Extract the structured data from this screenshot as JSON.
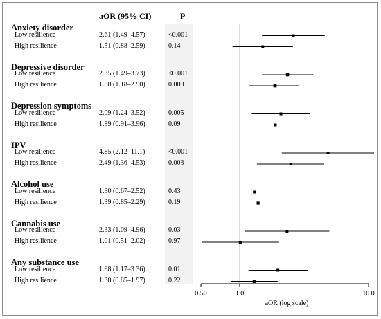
{
  "header": {
    "or_col": "aOR (95% CI)",
    "p_col": "P"
  },
  "chart_data": {
    "type": "forest",
    "xlabel": "aOR (log scale)",
    "xscale": "log",
    "xlim": [
      0.5,
      10.0
    ],
    "xticks": [
      0.5,
      1.0,
      10.0
    ],
    "xtick_labels": [
      "0.50",
      "1.0",
      "10.0"
    ],
    "reference_line": 1.0,
    "groups": [
      {
        "name": "Anxiety disorder",
        "rows": [
          {
            "label": "Low resilience",
            "or_text": "2.61 (1.49–4.57)",
            "p": "<0.001",
            "or": 2.61,
            "lo": 1.49,
            "hi": 4.57
          },
          {
            "label": "High resilience",
            "or_text": "1.51 (0.88–2.59)",
            "p": "0.14",
            "or": 1.51,
            "lo": 0.88,
            "hi": 2.59
          }
        ]
      },
      {
        "name": "Depressive disorder",
        "rows": [
          {
            "label": "Low resilience",
            "or_text": "2.35 (1.49–3.73)",
            "p": "<0.001",
            "or": 2.35,
            "lo": 1.49,
            "hi": 3.73
          },
          {
            "label": "High resilience",
            "or_text": "1.88 (1.18–2.90)",
            "p": "0.008",
            "or": 1.88,
            "lo": 1.18,
            "hi": 2.9
          }
        ]
      },
      {
        "name": "Depression symptoms",
        "rows": [
          {
            "label": "Low resilience",
            "or_text": "2.09 (1.24–3.52)",
            "p": "0.005",
            "or": 2.09,
            "lo": 1.24,
            "hi": 3.52
          },
          {
            "label": "High resilience",
            "or_text": "1.89 (0.91–3.96)",
            "p": "0.09",
            "or": 1.89,
            "lo": 0.91,
            "hi": 3.96
          }
        ]
      },
      {
        "name": "IPV",
        "rows": [
          {
            "label": "Low resilience",
            "or_text": "4.85 (2.12–11.1)",
            "p": "<0.001",
            "or": 4.85,
            "lo": 2.12,
            "hi": 11.1
          },
          {
            "label": "High resilience",
            "or_text": "2.49 (1.36–4.53)",
            "p": "0.003",
            "or": 2.49,
            "lo": 1.36,
            "hi": 4.53
          }
        ]
      },
      {
        "name": "Alcohol use",
        "rows": [
          {
            "label": "Low resilience",
            "or_text": "1.30 (0.67–2.52)",
            "p": "0.43",
            "or": 1.3,
            "lo": 0.67,
            "hi": 2.52
          },
          {
            "label": "High resilience",
            "or_text": "1.39 (0.85–2.29)",
            "p": "0.19",
            "or": 1.39,
            "lo": 0.85,
            "hi": 2.29
          }
        ]
      },
      {
        "name": "Cannabis use",
        "rows": [
          {
            "label": "Low resilience",
            "or_text": "2.33 (1.09–4.96)",
            "p": "0.03",
            "or": 2.33,
            "lo": 1.09,
            "hi": 4.96
          },
          {
            "label": "High resilience",
            "or_text": "1.01 (0.51–2.02)",
            "p": "0.97",
            "or": 1.01,
            "lo": 0.51,
            "hi": 2.02
          }
        ]
      },
      {
        "name": "Any substance use",
        "rows": [
          {
            "label": "Low resilience",
            "or_text": "1.98 (1.17–3.36)",
            "p": "0.01",
            "or": 1.98,
            "lo": 1.17,
            "hi": 3.36
          },
          {
            "label": "High resilience",
            "or_text": "1.30 (0.85–1.97)",
            "p": "0.22",
            "or": 1.3,
            "lo": 0.85,
            "hi": 1.97
          }
        ]
      }
    ]
  }
}
